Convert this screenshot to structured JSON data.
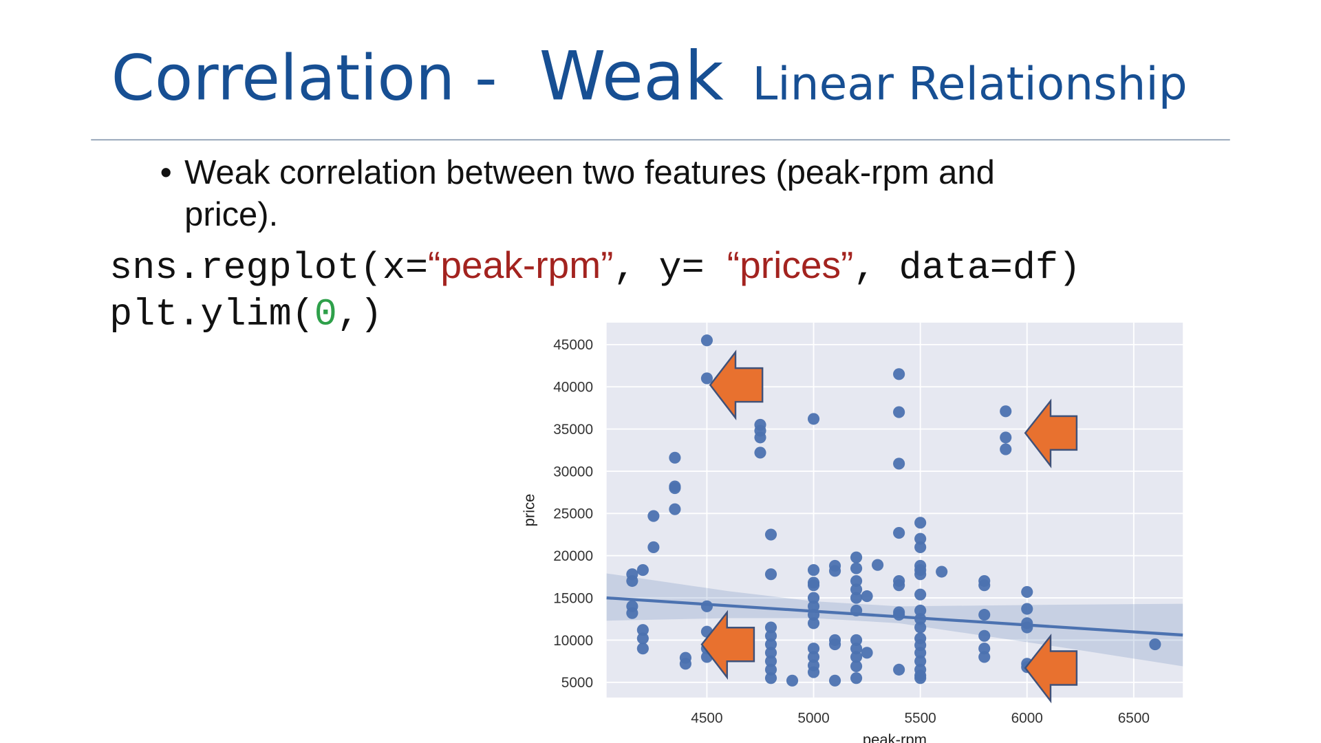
{
  "slide": {
    "title": [
      "Correlation -",
      "Weak",
      "Linear Relationship"
    ],
    "bullet": [
      "Weak  correlation between two features (peak-rpm and",
      "price)."
    ],
    "code": [
      [
        "sns.regplot(x=",
        "“peak-rpm”",
        ", y= ",
        "“prices”",
        ", data=df)"
      ],
      [
        "plt.ylim(",
        "0",
        ",)"
      ]
    ]
  },
  "chart_data": {
    "type": "scatter",
    "xlabel": "peak-rpm",
    "ylabel": "price",
    "color": "#4c72b0",
    "grid": true,
    "xlim": [
      4030,
      6730
    ],
    "ylim": [
      3200,
      47600
    ],
    "xticks": [
      4500,
      5000,
      5500,
      6000,
      6500
    ],
    "yticks": [
      5000,
      10000,
      15000,
      20000,
      25000,
      30000,
      35000,
      40000,
      45000
    ],
    "x": [
      4500,
      4500,
      4500,
      4500,
      4500,
      4500,
      4150,
      4150,
      4150,
      4150,
      4200,
      4200,
      4200,
      4200,
      4250,
      4250,
      4350,
      4350,
      4350,
      4350,
      4400,
      4400,
      4750,
      4750,
      4750,
      4750,
      4800,
      4800,
      4800,
      4800,
      4800,
      4800,
      4800,
      4800,
      4800,
      4900,
      5000,
      5000,
      5000,
      5000,
      5000,
      5000,
      5000,
      5000,
      5000,
      5000,
      5000,
      5000,
      5100,
      5100,
      5100,
      5100,
      5100,
      5200,
      5200,
      5200,
      5200,
      5200,
      5200,
      5200,
      5200,
      5200,
      5200,
      5200,
      5250,
      5250,
      5300,
      5400,
      5400,
      5400,
      5400,
      5400,
      5400,
      5400,
      5400,
      5400,
      5500,
      5500,
      5500,
      5500,
      5500,
      5500,
      5500,
      5500,
      5500,
      5500,
      5500,
      5500,
      5500,
      5500,
      5500,
      5500,
      5500,
      5600,
      5800,
      5800,
      5800,
      5800,
      5800,
      5800,
      5900,
      5900,
      5900,
      6000,
      6000,
      6000,
      6000,
      6000,
      6000,
      6600
    ],
    "values": [
      45500,
      41000,
      14000,
      11000,
      9000,
      8000,
      17800,
      17000,
      14000,
      13200,
      18300,
      11200,
      10200,
      9000,
      24700,
      21000,
      31600,
      28200,
      28000,
      25500,
      7900,
      7200,
      35500,
      34800,
      34000,
      32200,
      22500,
      17800,
      11500,
      10500,
      9500,
      8500,
      7500,
      6500,
      5500,
      5200,
      36200,
      18300,
      16800,
      16500,
      15000,
      14000,
      13000,
      12000,
      9000,
      8000,
      7000,
      6200,
      18800,
      18200,
      10000,
      9500,
      5200,
      19800,
      18500,
      17000,
      16000,
      15000,
      13500,
      10000,
      9000,
      8000,
      6900,
      5500,
      15200,
      8500,
      18900,
      41500,
      37000,
      30900,
      22700,
      17000,
      16500,
      13300,
      13000,
      6500,
      23900,
      22000,
      21000,
      18800,
      18300,
      17800,
      15400,
      13500,
      12500,
      11500,
      10200,
      9400,
      8500,
      7500,
      6500,
      5800,
      5500,
      18100,
      17000,
      16500,
      13000,
      10500,
      9000,
      8000,
      37100,
      34000,
      32600,
      15700,
      13700,
      12000,
      11500,
      7200,
      6800,
      9500
    ],
    "regression": {
      "x": [
        4030,
        6730
      ],
      "y": [
        15000,
        10600
      ]
    },
    "ci_band": {
      "x": [
        4030,
        4600,
        5000,
        5400,
        5800,
        6200,
        6730
      ],
      "upper": [
        17900,
        15800,
        14600,
        14000,
        14100,
        14200,
        14300
      ],
      "lower": [
        12300,
        12600,
        12600,
        12000,
        10500,
        9000,
        6900
      ]
    }
  }
}
